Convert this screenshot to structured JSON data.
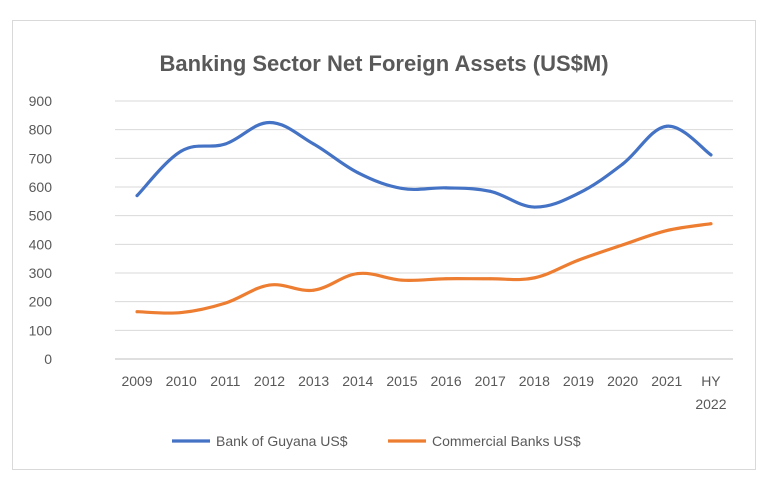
{
  "chart_data": {
    "type": "line",
    "title": "Banking Sector Net Foreign Assets (US$M)",
    "categories": [
      "2009",
      "2010",
      "2011",
      "2012",
      "2013",
      "2014",
      "2015",
      "2016",
      "2017",
      "2018",
      "2019",
      "2020",
      "2021",
      "HY 2022"
    ],
    "ylim": [
      0,
      900
    ],
    "yticks": [
      0,
      100,
      200,
      300,
      400,
      500,
      600,
      700,
      800,
      900
    ],
    "grid": true,
    "legend_position": "bottom",
    "series": [
      {
        "name": "Bank of Guyana US$",
        "color": "#4472c4",
        "values": [
          570,
          725,
          750,
          825,
          750,
          650,
          595,
          597,
          585,
          530,
          578,
          680,
          812,
          712
        ]
      },
      {
        "name": "Commercial Banks US$",
        "color": "#ed7d31",
        "values": [
          165,
          162,
          195,
          258,
          240,
          298,
          275,
          280,
          280,
          283,
          345,
          398,
          448,
          472
        ]
      }
    ]
  }
}
